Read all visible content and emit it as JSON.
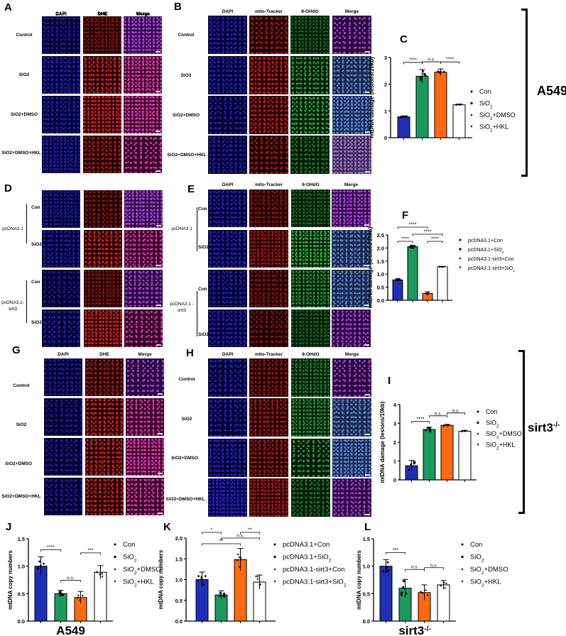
{
  "figure": {
    "panels": {
      "A": {
        "label": "A",
        "columns": [
          "DAPI",
          "DHE",
          "Merge"
        ],
        "rows": [
          "Control",
          "SiO2",
          "SiO2+DMSO",
          "SiO2+DMSO+HKL"
        ]
      },
      "B": {
        "label": "B",
        "columns": [
          "DAPI",
          "mito-Tracker",
          "8-OHdG",
          "Merge"
        ],
        "rows": [
          "Control",
          "SiO2",
          "SiO2+DMSO",
          "SiO2+DMSO+HKL"
        ]
      },
      "D": {
        "label": "D",
        "columns": [
          "DAPI",
          "DHE",
          "Merge"
        ],
        "groups": [
          "pcDNA3.1",
          "pcDNA3.1-sirt3"
        ],
        "rows": [
          "Con",
          "SiO2",
          "Con",
          "SiO2"
        ]
      },
      "E": {
        "label": "E",
        "columns": [
          "DAPI",
          "mito-Tracker",
          "8-OHdG",
          "Merge"
        ],
        "groups": [
          "pcDNA3.1",
          "pcDNA3.1 -sirt3"
        ],
        "rows": [
          "Con",
          "SiO2",
          "Con",
          "SiO2"
        ]
      },
      "G": {
        "label": "G",
        "columns": [
          "DAPI",
          "DHE",
          "Merge"
        ],
        "rows": [
          "Control",
          "SiO2",
          "SiO2+DMSO",
          "SiO2+DMSO+HKL"
        ]
      },
      "H": {
        "label": "H",
        "columns": [
          "DAPI",
          "mito-Tracker",
          "8-OHdG",
          "Merge"
        ],
        "rows": [
          "Control",
          "SiO2",
          "SiO2+DMSO",
          "SiO2+DMSO+HKL"
        ]
      }
    },
    "cell_lines": {
      "top": "A549",
      "bottom": "sirt3",
      "bottom_sup": "-/-"
    }
  },
  "chart_data": [
    {
      "id": "C",
      "type": "bar",
      "title": "",
      "ylabel": "mtDNA damage (lesions/10kb)",
      "xlabel": "",
      "ylim": [
        0,
        3
      ],
      "yticks": [
        0,
        1,
        2,
        3
      ],
      "categories": [
        "Con",
        "SiO2",
        "SiO2+DMSO",
        "SiO2+HKL"
      ],
      "values": [
        0.78,
        2.3,
        2.45,
        1.23
      ],
      "errors": [
        0.03,
        0.25,
        0.12,
        0.03
      ],
      "colors": [
        "#1f2fb5",
        "#1a9a5c",
        "#ff6a10",
        "#ffffff"
      ],
      "significance": [
        {
          "from": 0,
          "to": 1,
          "label": "****"
        },
        {
          "from": 1,
          "to": 2,
          "label": "n.s."
        },
        {
          "from": 2,
          "to": 3,
          "label": "****"
        }
      ],
      "legend": [
        "Con",
        "SiO2",
        "SiO2+DMSO",
        "SiO2+HKL"
      ],
      "grid": false,
      "legend_position": "right"
    },
    {
      "id": "F",
      "type": "bar",
      "ylabel": "mtDNA damage (lesions/10kb)",
      "xlabel": "",
      "ylim": [
        0,
        2.5
      ],
      "yticks": [
        0.0,
        0.5,
        1.0,
        1.5,
        2.0,
        2.5
      ],
      "categories": [
        "pcDNA3.1+Con",
        "pcDNA3.1+SiO2",
        "pcDNA3.1-sirt3+Con",
        "pcDNA3.1-sirt3+SiO2"
      ],
      "values": [
        0.78,
        2.05,
        0.26,
        1.28
      ],
      "errors": [
        0.04,
        0.05,
        0.06,
        0.02
      ],
      "colors": [
        "#1f2fb5",
        "#1a9a5c",
        "#ff6a10",
        "#ffffff"
      ],
      "significance": [
        {
          "from": 0,
          "to": 2,
          "label": "****",
          "level": 2
        },
        {
          "from": 0,
          "to": 1,
          "label": "****",
          "level": 0
        },
        {
          "from": 1,
          "to": 3,
          "label": "****",
          "level": 1
        },
        {
          "from": 2,
          "to": 3,
          "label": "****",
          "level": 0
        }
      ],
      "legend": [
        "pcDNA3.1+Con",
        "pcDNA3.1+SiO2",
        "pcDNA3.1-sirt3+Con",
        "pcDNA3.1-sirt3+SiO2"
      ],
      "grid": false,
      "legend_position": "right"
    },
    {
      "id": "I",
      "type": "bar",
      "ylabel": "mtDNA damage (lesions/10kb)",
      "xlabel": "",
      "ylim": [
        0,
        4
      ],
      "yticks": [
        0,
        1,
        2,
        3,
        4
      ],
      "categories": [
        "Con",
        "SiO2",
        "SiO2+DMSO",
        "SiO2+HKL"
      ],
      "values": [
        0.75,
        2.68,
        2.9,
        2.58
      ],
      "errors": [
        0.28,
        0.12,
        0.05,
        0.04
      ],
      "colors": [
        "#1f2fb5",
        "#1a9a5c",
        "#ff6a10",
        "#ffffff"
      ],
      "significance": [
        {
          "from": 0,
          "to": 1,
          "label": "****"
        },
        {
          "from": 1,
          "to": 2,
          "label": "n.s."
        },
        {
          "from": 2,
          "to": 3,
          "label": "n.s."
        }
      ],
      "legend": [
        "Con",
        "SiO2",
        "SiO2+DMSO",
        "SiO2+HKL"
      ],
      "grid": false,
      "legend_position": "right"
    },
    {
      "id": "J",
      "type": "bar",
      "ylabel": "mtDNA copy numbers",
      "xlabel": "A549",
      "ylim": [
        0,
        1.5
      ],
      "yticks": [
        0.0,
        0.5,
        1.0,
        1.5
      ],
      "categories": [
        "Con",
        "SiO2",
        "SiO2+DMSO",
        "SiO2+HKL"
      ],
      "values": [
        1.0,
        0.5,
        0.43,
        0.89
      ],
      "errors": [
        0.17,
        0.06,
        0.11,
        0.12
      ],
      "colors": [
        "#1f2fb5",
        "#1a9a5c",
        "#ff6a10",
        "#ffffff"
      ],
      "significance": [
        {
          "from": 0,
          "to": 1,
          "label": "****"
        },
        {
          "from": 1,
          "to": 2,
          "label": "n.s."
        },
        {
          "from": 2,
          "to": 3,
          "label": "***"
        }
      ],
      "legend": [
        "Con",
        "SiO2",
        "SiO2+DMSO",
        "SiO2+HKL"
      ],
      "grid": false,
      "legend_position": "right"
    },
    {
      "id": "K",
      "type": "bar",
      "ylabel": "mtDNA copy numbers",
      "xlabel": "",
      "ylim": [
        0,
        2.0
      ],
      "yticks": [
        0.0,
        0.5,
        1.0,
        1.5,
        2.0
      ],
      "categories": [
        "pcDNA3.1+Con",
        "pcDNA3.1+SiO2",
        "pcDNA3.1-sirt3+Con",
        "pcDNA3.1-sirt3+SiO2"
      ],
      "values": [
        1.0,
        0.63,
        1.48,
        0.94
      ],
      "errors": [
        0.18,
        0.1,
        0.27,
        0.17
      ],
      "colors": [
        "#1f2fb5",
        "#1a9a5c",
        "#ff6a10",
        "#ffffff"
      ],
      "significance": [
        {
          "from": 0,
          "to": 2,
          "label": "**",
          "level": 2
        },
        {
          "from": 0,
          "to": 1,
          "label": "*",
          "level": 0
        },
        {
          "from": 1,
          "to": 3,
          "label": "n.s.",
          "level": 1
        },
        {
          "from": 2,
          "to": 3,
          "label": "**",
          "level": 0
        }
      ],
      "legend": [
        "pcDNA3.1+Con",
        "pcDNA3.1+SiO2",
        "pcDNA3.1-sirt3+Con",
        "pcDNA3.1-sirt3+SiO2"
      ],
      "grid": false,
      "legend_position": "right"
    },
    {
      "id": "L",
      "type": "bar",
      "ylabel": "mtDNA copy numbers",
      "xlabel": "sirt3-/-",
      "ylim": [
        0,
        1.5
      ],
      "yticks": [
        0.0,
        0.5,
        1.0,
        1.5
      ],
      "categories": [
        "Con",
        "SiO2",
        "SiO2+DMSO",
        "SiO2+HKL"
      ],
      "values": [
        1.0,
        0.6,
        0.52,
        0.66
      ],
      "errors": [
        0.12,
        0.16,
        0.14,
        0.08
      ],
      "colors": [
        "#1f2fb5",
        "#1a9a5c",
        "#ff6a10",
        "#ffffff"
      ],
      "significance": [
        {
          "from": 0,
          "to": 1,
          "label": "***"
        },
        {
          "from": 1,
          "to": 2,
          "label": "n.s."
        },
        {
          "from": 2,
          "to": 3,
          "label": "n.s."
        }
      ],
      "legend": [
        "Con",
        "SiO2",
        "SiO2+DMSO",
        "SiO2+HKL"
      ],
      "grid": false,
      "legend_position": "right"
    }
  ]
}
